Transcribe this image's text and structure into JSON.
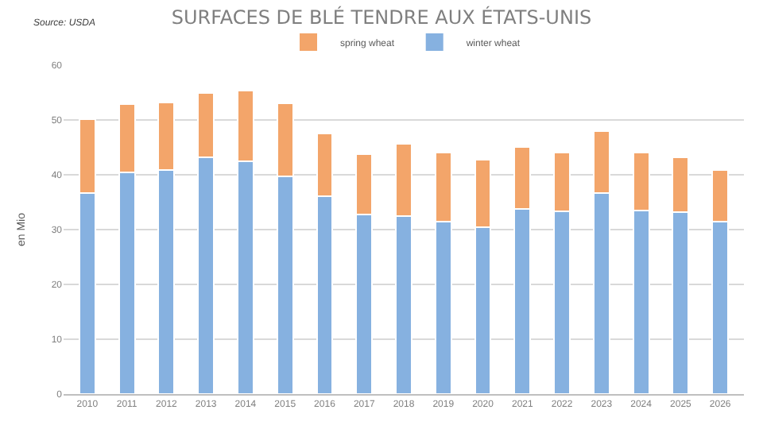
{
  "chart_data": {
    "type": "bar",
    "title": "SURFACES DE BLÉ TENDRE AUX ÉTATS-UNIS",
    "ylabel": "en Mio",
    "annotations": [
      "Source: USDA"
    ],
    "categories": [
      "2010",
      "2011",
      "2012",
      "2013",
      "2014",
      "2015",
      "2016",
      "2017",
      "2018",
      "2019",
      "2020",
      "2021",
      "2022",
      "2023",
      "2024",
      "2025",
      "2026"
    ],
    "stacked": true,
    "series": [
      {
        "name": "winter wheat",
        "color": "#86b1e0",
        "values": [
          36.7,
          40.5,
          40.9,
          43.2,
          42.5,
          39.7,
          36.1,
          32.8,
          32.5,
          31.4,
          30.5,
          33.7,
          33.3,
          36.7,
          33.5,
          33.2,
          31.5
        ]
      },
      {
        "name": "spring wheat",
        "color": "#f3a56a",
        "values": [
          13.4,
          12.4,
          12.3,
          11.7,
          12.9,
          13.3,
          11.5,
          11.0,
          13.2,
          12.7,
          12.2,
          11.4,
          10.8,
          11.2,
          10.6,
          10.0,
          9.4
        ]
      }
    ],
    "ylim": [
      0,
      60
    ],
    "yticks": [
      0,
      10,
      20,
      30,
      40,
      50,
      60
    ],
    "grid": "y",
    "legend": "top"
  }
}
